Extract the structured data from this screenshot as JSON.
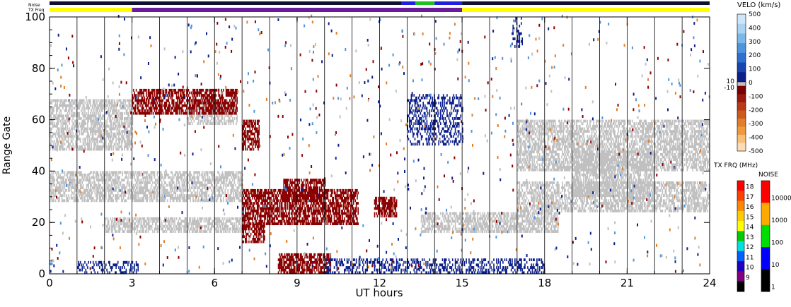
{
  "chart_data": {
    "type": "heatmap",
    "title": "",
    "xlabel": "UT hours",
    "ylabel": "Range Gate",
    "xlim": [
      0,
      24
    ],
    "ylim": [
      0,
      100
    ],
    "x_ticks": [
      "0",
      "3",
      "6",
      "9",
      "12",
      "15",
      "18",
      "21",
      "24"
    ],
    "y_ticks": [
      "0",
      "20",
      "40",
      "60",
      "80",
      "100"
    ],
    "hour_gridlines": true,
    "top_strips": {
      "noise_label": "Noise",
      "txfreq_label": "TX Freq",
      "txfreq_segments": [
        {
          "from": 0,
          "to": 3,
          "color": "#ffff00"
        },
        {
          "from": 3,
          "to": 15,
          "color": "#6a1b9a"
        },
        {
          "from": 15,
          "to": 24,
          "color": "#ffff00"
        }
      ],
      "noise_segments": [
        {
          "from": 0,
          "to": 12.8,
          "color": "#101030"
        },
        {
          "from": 12.8,
          "to": 13.3,
          "color": "#2020e0"
        },
        {
          "from": 13.3,
          "to": 14.0,
          "color": "#20c020"
        },
        {
          "from": 14.0,
          "to": 15.0,
          "color": "#2020e0"
        },
        {
          "from": 15.0,
          "to": 24,
          "color": "#101030"
        }
      ]
    },
    "colorbars": {
      "velocity": {
        "title": "VELO (km/s)",
        "ticks": [
          "500",
          "400",
          "300",
          "200",
          "100",
          "0",
          "-100",
          "-200",
          "-300",
          "-400",
          "-500"
        ],
        "ground_scatter_labels": [
          "10",
          "-10"
        ],
        "colors": [
          "#cfe6f8",
          "#a8d4f2",
          "#7ab8ea",
          "#4f95de",
          "#2e6fd0",
          "#1a44b0",
          "#0c1f8a",
          "#7a0000",
          "#9a1a10",
          "#b83a18",
          "#cc5a1e",
          "#e07e2a",
          "#ef9a3c",
          "#f7bf78",
          "#fbdcb4"
        ]
      },
      "txfreq": {
        "title": "TX FRQ (MHz)",
        "ticks": [
          "18",
          "17",
          "16",
          "15",
          "14",
          "13",
          "12",
          "11",
          "10",
          "9"
        ],
        "colors": [
          "#ff0000",
          "#ff4000",
          "#ff8800",
          "#ffcc00",
          "#ffff00",
          "#00cc00",
          "#00e0e0",
          "#0060ff",
          "#2000c0",
          "#800080",
          "#000000"
        ]
      },
      "noise": {
        "title": "NOISE",
        "ticks": [
          "10000",
          "1000",
          "100",
          "10",
          "1"
        ],
        "colors": [
          "#ff0000",
          "#ffaa00",
          "#00dd00",
          "#0000ff",
          "#000000"
        ]
      }
    },
    "series": [
      {
        "name": "ground scatter",
        "color": "#c0c0c0",
        "bands": [
          {
            "x0": 0.0,
            "x1": 3.0,
            "y0": 48,
            "y1": 68
          },
          {
            "x0": 0.0,
            "x1": 7.0,
            "y0": 28,
            "y1": 40
          },
          {
            "x0": 2.0,
            "x1": 7.0,
            "y0": 16,
            "y1": 22
          },
          {
            "x0": 5.0,
            "x1": 6.8,
            "y0": 58,
            "y1": 68
          },
          {
            "x0": 17.0,
            "x1": 24.0,
            "y0": 40,
            "y1": 60
          },
          {
            "x0": 17.0,
            "x1": 24.0,
            "y0": 24,
            "y1": 36
          },
          {
            "x0": 19.0,
            "x1": 22.0,
            "y0": 30,
            "y1": 48
          },
          {
            "x0": 13.5,
            "x1": 18.5,
            "y0": 16,
            "y1": 24
          }
        ]
      },
      {
        "name": "negative velocity",
        "color": "#8b0000",
        "bands": [
          {
            "x0": 7.0,
            "x1": 11.2,
            "y0": 19,
            "y1": 33
          },
          {
            "x0": 8.5,
            "x1": 10.0,
            "y0": 28,
            "y1": 37
          },
          {
            "x0": 11.8,
            "x1": 12.6,
            "y0": 22,
            "y1": 30
          },
          {
            "x0": 8.3,
            "x1": 10.2,
            "y0": 0,
            "y1": 8
          },
          {
            "x0": 7.0,
            "x1": 7.8,
            "y0": 12,
            "y1": 20
          },
          {
            "x0": 3.0,
            "x1": 6.8,
            "y0": 62,
            "y1": 72
          },
          {
            "x0": 7.0,
            "x1": 7.6,
            "y0": 48,
            "y1": 60
          }
        ]
      },
      {
        "name": "positive velocity",
        "color": "#0c1f8a",
        "bands": [
          {
            "x0": 1.0,
            "x1": 3.2,
            "y0": 0,
            "y1": 5
          },
          {
            "x0": 10.0,
            "x1": 18.0,
            "y0": 0,
            "y1": 6
          },
          {
            "x0": 13.0,
            "x1": 15.0,
            "y0": 50,
            "y1": 70
          },
          {
            "x0": 16.8,
            "x1": 17.2,
            "y0": 88,
            "y1": 100
          }
        ]
      }
    ]
  }
}
